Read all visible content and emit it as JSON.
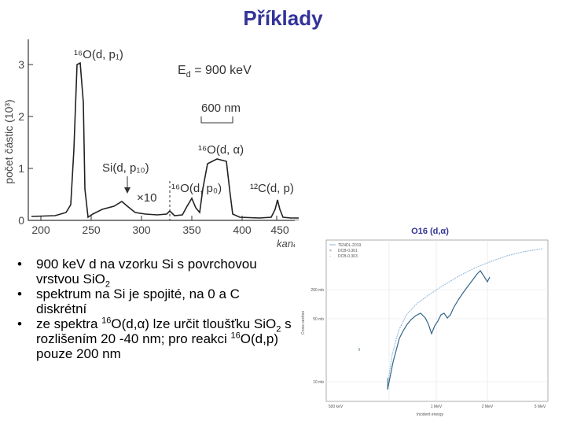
{
  "slide": {
    "title": "Příklady"
  },
  "spectrum_figure": {
    "y_axis_label": "počet částic (10³)",
    "y_ticks": [
      "0",
      "1",
      "2",
      "3"
    ],
    "x_ticks": [
      "200",
      "250",
      "300",
      "350",
      "400",
      "450"
    ],
    "x_axis_label": "kanál",
    "energy_label": "E",
    "energy_sub": "d",
    "energy_value": " = 900 keV",
    "depth_scale": "600 nm",
    "labels": {
      "o_dp1": "¹⁶O(d, p₁)",
      "o_dalpha": "¹⁶O(d, α)",
      "si_dp10": "Si(d, p₁₀)",
      "times10": "×10",
      "o_dp0": "¹⁶O(d, p₀)",
      "c_dp": "¹²C(d, p)"
    }
  },
  "bullets": {
    "b1": {
      "a": "900 keV d na vzorku Si s povrchovou vrstvou SiO",
      "sub": "2"
    },
    "b2": {
      "a": "spektrum na Si je spojité, na 0 a C diskrétní"
    },
    "b3": {
      "a": "ze spektra ",
      "sup1": "16",
      "b": "O(d,",
      "greek": "α",
      "c": ") lze určit tloušťku SiO",
      "sub": "2",
      "d": " s  rozlišením 20 -40 nm; pro reakci ",
      "sup2": "16",
      "e": "O(d,p) pouze 200 nm"
    }
  },
  "cross_section_figure": {
    "title": "O16 (d,α)",
    "legend": [
      "TENDL-2019",
      "DCB-0.361",
      "DCB-0.363"
    ],
    "y_axis_label": "Cross section",
    "y_ticks": [
      "200 mb",
      "50 mb",
      "10 mb"
    ],
    "x_ticks": [
      "500 keV",
      "1 MeV",
      "2 MeV",
      "5 MeV"
    ],
    "x_axis_label": "Incident energy",
    "colors": {
      "tendl": "#8fb4d8",
      "data": "#336688"
    }
  }
}
